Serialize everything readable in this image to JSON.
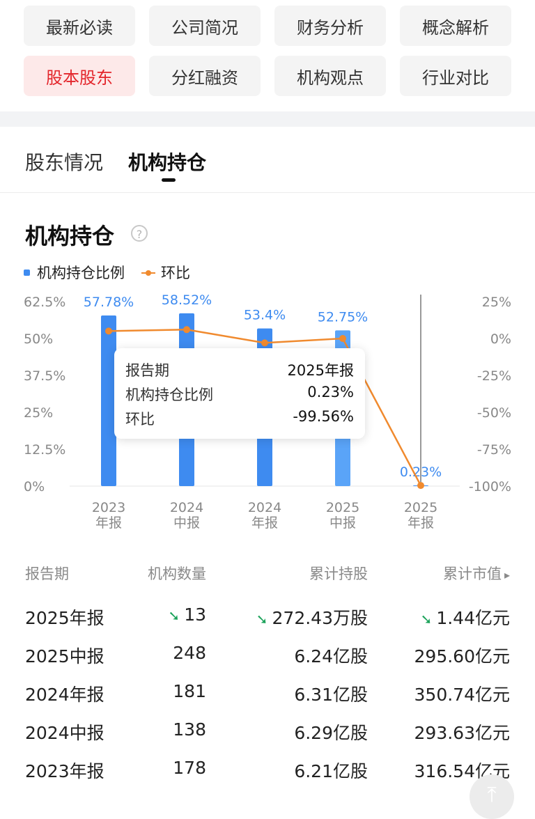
{
  "top_tabs": [
    {
      "label": "最新必读",
      "active": false
    },
    {
      "label": "公司简况",
      "active": false
    },
    {
      "label": "财务分析",
      "active": false
    },
    {
      "label": "概念解析",
      "active": false
    },
    {
      "label": "股本股东",
      "active": true
    },
    {
      "label": "分红融资",
      "active": false
    },
    {
      "label": "机构观点",
      "active": false
    },
    {
      "label": "行业对比",
      "active": false
    }
  ],
  "sub_tabs": [
    {
      "label": "股东情况",
      "active": false
    },
    {
      "label": "机构持仓",
      "active": true
    }
  ],
  "section": {
    "title": "机构持仓",
    "help_icon": "question-circle-icon"
  },
  "legend": {
    "bar_label": "机构持仓比例",
    "line_label": "环比"
  },
  "colors": {
    "bar": "#3e8bf0",
    "line": "#f08a2e",
    "active_tab": "#e3252b",
    "down": "#1ba25a"
  },
  "chart_data": {
    "type": "bar",
    "categories": [
      "2023\n年报",
      "2024\n中报",
      "2024\n年报",
      "2025\n中报",
      "2025\n年报"
    ],
    "series": [
      {
        "name": "机构持仓比例",
        "type": "bar",
        "axis": "left",
        "values": [
          57.78,
          58.52,
          53.4,
          52.75,
          0.23
        ],
        "labels": [
          "57.78%",
          "58.52%",
          "53.4%",
          "52.75%",
          "0.23%"
        ]
      },
      {
        "name": "环比",
        "type": "line",
        "axis": "right",
        "values": [
          5,
          6,
          -3,
          0,
          -99.56
        ]
      }
    ],
    "left_ticks": [
      "62.5%",
      "50%",
      "37.5%",
      "25%",
      "12.5%",
      "0%"
    ],
    "right_ticks": [
      "25%",
      "0%",
      "-25%",
      "-50%",
      "-75%",
      "-100%"
    ],
    "left_range": [
      0,
      62.5
    ],
    "right_range": [
      -100,
      25
    ],
    "highlight_index": 4,
    "legend_position": "top-left"
  },
  "tooltip": {
    "rows": [
      {
        "k": "报告期",
        "v": "2025年报"
      },
      {
        "k": "机构持仓比例",
        "v": "0.23%"
      },
      {
        "k": "环比",
        "v": "-99.56%"
      }
    ]
  },
  "table": {
    "headers": [
      "报告期",
      "机构数量",
      "累计持股",
      "累计市值"
    ],
    "header_arrow": "chevron-right-icon",
    "rows": [
      {
        "period": "2025年报",
        "count": "13",
        "shares": "272.43万股",
        "value": "1.44亿元",
        "down": true
      },
      {
        "period": "2025中报",
        "count": "248",
        "shares": "6.24亿股",
        "value": "295.60亿元",
        "down": false
      },
      {
        "period": "2024年报",
        "count": "181",
        "shares": "6.31亿股",
        "value": "350.74亿元",
        "down": false
      },
      {
        "period": "2024中报",
        "count": "138",
        "shares": "6.29亿股",
        "value": "293.63亿元",
        "down": false
      },
      {
        "period": "2023年报",
        "count": "178",
        "shares": "6.21亿股",
        "value": "316.54亿元",
        "down": false
      }
    ]
  },
  "scroll_top_icon": "arrow-up-to-top-icon"
}
